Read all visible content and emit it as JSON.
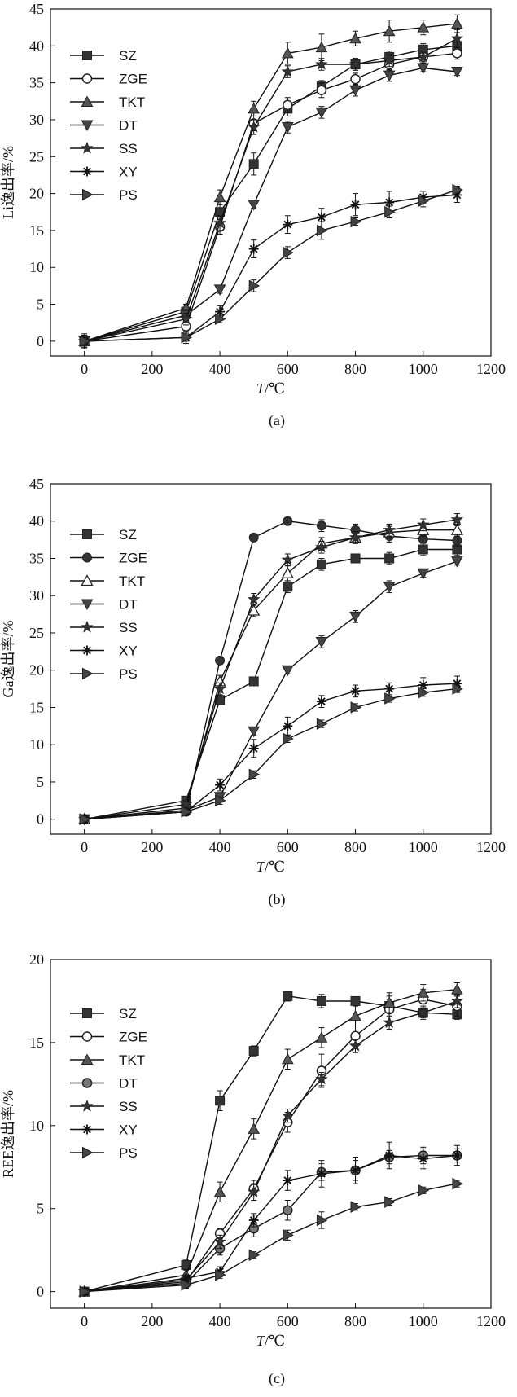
{
  "chart_data": [
    {
      "type": "line",
      "caption": "(a)",
      "ylabel": "Li逸出率/%",
      "xlabel_italic": "T",
      "xlabel_rest": "/℃",
      "xlim": [
        -100,
        1200
      ],
      "ylim": [
        -2,
        45
      ],
      "xticks": [
        0,
        200,
        400,
        600,
        800,
        1000,
        1200
      ],
      "yticks": [
        0,
        5,
        10,
        15,
        20,
        25,
        30,
        35,
        40,
        45
      ],
      "x": [
        0,
        300,
        400,
        500,
        600,
        700,
        800,
        900,
        1000,
        1100
      ],
      "legend_position": "upper-left",
      "series": [
        {
          "name": "SZ",
          "marker": "square-filled",
          "values": [
            0,
            4.0,
            17.5,
            24.0,
            31.5,
            34.5,
            37.5,
            38.5,
            39.5,
            40.0
          ],
          "errors": [
            0.8,
            1.0,
            1.0,
            1.5,
            1.0,
            0.8,
            0.8,
            0.8,
            0.8,
            0.8
          ]
        },
        {
          "name": "ZGE",
          "marker": "circle-open",
          "values": [
            0,
            2.0,
            15.5,
            29.5,
            32.0,
            34.0,
            35.5,
            37.5,
            38.5,
            39.0
          ],
          "errors": [
            0.8,
            0.8,
            1.0,
            1.0,
            1.0,
            1.0,
            0.8,
            0.8,
            0.8,
            0.8
          ]
        },
        {
          "name": "TKT",
          "marker": "triangle-up",
          "values": [
            0,
            4.5,
            19.5,
            31.5,
            39.0,
            39.8,
            41.0,
            42.0,
            42.5,
            43.0
          ],
          "errors": [
            1.0,
            1.5,
            1.0,
            1.0,
            1.5,
            1.8,
            1.0,
            1.5,
            1.0,
            1.2
          ]
        },
        {
          "name": "DT",
          "marker": "triangle-down",
          "values": [
            0,
            3.5,
            7.0,
            18.5,
            29.0,
            31.0,
            34.0,
            36.0,
            37.0,
            36.5
          ],
          "errors": [
            0.8,
            0.8,
            0.5,
            0.5,
            0.8,
            0.8,
            0.8,
            0.8,
            0.5,
            0.5
          ]
        },
        {
          "name": "SS",
          "marker": "star",
          "values": [
            0,
            3.0,
            16.0,
            29.0,
            36.5,
            37.5,
            37.5,
            38.0,
            38.5,
            41.0
          ],
          "errors": [
            0.8,
            0.8,
            1.0,
            1.0,
            0.8,
            0.8,
            0.8,
            0.8,
            0.8,
            1.2
          ]
        },
        {
          "name": "XY",
          "marker": "asterisk",
          "values": [
            0,
            0.5,
            4.0,
            12.5,
            15.8,
            16.8,
            18.5,
            18.8,
            19.5,
            19.8
          ],
          "errors": [
            0.8,
            0.8,
            0.8,
            1.2,
            1.2,
            1.2,
            1.5,
            1.5,
            0.8,
            1.0
          ]
        },
        {
          "name": "PS",
          "marker": "triangle-right",
          "values": [
            0,
            0.5,
            3.0,
            7.5,
            12.0,
            15.0,
            16.2,
            17.5,
            19.0,
            20.5
          ],
          "errors": [
            0.5,
            0.5,
            0.5,
            0.8,
            0.8,
            1.2,
            0.5,
            0.8,
            0.8,
            0.5
          ]
        }
      ]
    },
    {
      "type": "line",
      "caption": "(b)",
      "ylabel": "Ga逸出率/%",
      "xlabel_italic": "T",
      "xlabel_rest": "/℃",
      "xlim": [
        -100,
        1200
      ],
      "ylim": [
        -2,
        45
      ],
      "xticks": [
        0,
        200,
        400,
        600,
        800,
        1000,
        1200
      ],
      "yticks": [
        0,
        5,
        10,
        15,
        20,
        25,
        30,
        35,
        40,
        45
      ],
      "x": [
        0,
        300,
        400,
        500,
        600,
        700,
        800,
        900,
        1000,
        1100
      ],
      "legend_position": "upper-left",
      "series": [
        {
          "name": "SZ",
          "marker": "square-filled",
          "values": [
            0,
            2.5,
            16.0,
            18.5,
            31.2,
            34.2,
            35.0,
            35.0,
            36.2,
            36.2
          ],
          "errors": [
            0.5,
            0.5,
            0.5,
            0.5,
            0.8,
            0.8,
            0.5,
            0.8,
            0.8,
            0.8
          ]
        },
        {
          "name": "ZGE",
          "marker": "circle-filled",
          "values": [
            0,
            1.0,
            21.3,
            37.8,
            40.0,
            39.4,
            38.8,
            38.0,
            37.6,
            37.4
          ],
          "errors": [
            0.5,
            0.5,
            0.5,
            0.5,
            0.5,
            0.8,
            0.8,
            0.8,
            0.8,
            0.8
          ]
        },
        {
          "name": "TKT",
          "marker": "triangle-open",
          "values": [
            0,
            1.5,
            18.5,
            28.0,
            33.0,
            37.0,
            37.8,
            38.5,
            38.8,
            38.8
          ],
          "errors": [
            0.5,
            0.5,
            0.8,
            0.8,
            1.0,
            0.8,
            0.8,
            0.8,
            0.8,
            0.8
          ]
        },
        {
          "name": "DT",
          "marker": "triangle-down",
          "values": [
            0,
            1.2,
            3.0,
            11.8,
            20.0,
            23.8,
            27.2,
            31.2,
            33.0,
            34.6
          ],
          "errors": [
            0.5,
            0.5,
            0.5,
            0.5,
            0.5,
            0.8,
            0.8,
            0.8,
            0.5,
            0.5
          ]
        },
        {
          "name": "SS",
          "marker": "star",
          "values": [
            0,
            2.0,
            17.5,
            29.5,
            34.8,
            36.5,
            37.8,
            38.8,
            39.5,
            40.2
          ],
          "errors": [
            0.5,
            0.5,
            0.8,
            0.8,
            0.8,
            0.8,
            0.8,
            0.8,
            0.8,
            0.8
          ]
        },
        {
          "name": "XY",
          "marker": "asterisk",
          "values": [
            0,
            1.0,
            4.6,
            9.5,
            12.5,
            15.8,
            17.2,
            17.5,
            18.0,
            18.2
          ],
          "errors": [
            0.5,
            0.5,
            0.8,
            1.2,
            1.2,
            0.8,
            0.8,
            0.8,
            1.0,
            1.0
          ]
        },
        {
          "name": "PS",
          "marker": "triangle-right",
          "values": [
            0,
            1.0,
            2.5,
            6.0,
            10.8,
            12.8,
            15.0,
            16.2,
            17.0,
            17.5
          ],
          "errors": [
            0.5,
            0.5,
            0.5,
            0.5,
            0.5,
            0.5,
            0.5,
            0.5,
            0.5,
            0.5
          ]
        }
      ]
    },
    {
      "type": "line",
      "caption": "(c)",
      "ylabel": "REE逸出率/%",
      "xlabel_italic": "T",
      "xlabel_rest": "/℃",
      "xlim": [
        -100,
        1200
      ],
      "ylim": [
        -1,
        20
      ],
      "xticks": [
        0,
        200,
        400,
        600,
        800,
        1000,
        1200
      ],
      "yticks": [
        0,
        5,
        10,
        15,
        20
      ],
      "x": [
        0,
        300,
        400,
        500,
        600,
        700,
        800,
        900,
        1000,
        1100
      ],
      "legend_position": "upper-left",
      "series": [
        {
          "name": "SZ",
          "marker": "square-filled",
          "values": [
            0,
            1.6,
            11.5,
            14.5,
            17.8,
            17.5,
            17.5,
            17.2,
            16.8,
            16.7
          ],
          "errors": [
            0.2,
            0.3,
            0.6,
            0.3,
            0.3,
            0.4,
            0.2,
            0.4,
            0.3,
            0.3
          ]
        },
        {
          "name": "ZGE",
          "marker": "circle-open",
          "values": [
            0,
            0.6,
            3.5,
            6.2,
            10.2,
            13.3,
            15.4,
            17.0,
            17.6,
            17.2
          ],
          "errors": [
            0.2,
            0.2,
            0.3,
            0.5,
            0.6,
            1.0,
            1.0,
            0.8,
            0.6,
            0.6
          ]
        },
        {
          "name": "TKT",
          "marker": "triangle-up",
          "values": [
            0,
            1.0,
            6.0,
            9.8,
            14.0,
            15.3,
            16.6,
            17.4,
            18.0,
            18.2
          ],
          "errors": [
            0.2,
            0.3,
            0.6,
            0.6,
            0.6,
            0.6,
            0.6,
            0.6,
            0.5,
            0.4
          ]
        },
        {
          "name": "DT",
          "marker": "circle-half",
          "values": [
            0,
            0.5,
            2.6,
            3.8,
            4.9,
            7.2,
            7.3,
            8.1,
            8.2,
            8.2
          ],
          "errors": [
            0.2,
            0.2,
            0.4,
            0.5,
            0.6,
            0.5,
            0.6,
            0.4,
            0.5,
            0.4
          ]
        },
        {
          "name": "SS",
          "marker": "star",
          "values": [
            0,
            0.7,
            3.0,
            6.0,
            10.6,
            12.8,
            14.8,
            16.2,
            16.8,
            17.5
          ],
          "errors": [
            0.2,
            0.2,
            0.4,
            0.5,
            0.4,
            0.4,
            0.4,
            0.4,
            0.4,
            0.4
          ]
        },
        {
          "name": "XY",
          "marker": "asterisk",
          "values": [
            0,
            0.8,
            1.2,
            4.3,
            6.7,
            7.1,
            7.3,
            8.2,
            8.0,
            8.2
          ],
          "errors": [
            0.2,
            0.2,
            0.3,
            0.4,
            0.6,
            0.8,
            0.8,
            0.8,
            0.6,
            0.6
          ]
        },
        {
          "name": "PS",
          "marker": "triangle-right",
          "values": [
            0,
            0.4,
            1.0,
            2.2,
            3.4,
            4.3,
            5.1,
            5.4,
            6.1,
            6.5
          ],
          "errors": [
            0.2,
            0.2,
            0.2,
            0.2,
            0.3,
            0.5,
            0.2,
            0.2,
            0.2,
            0.2
          ]
        }
      ]
    }
  ]
}
